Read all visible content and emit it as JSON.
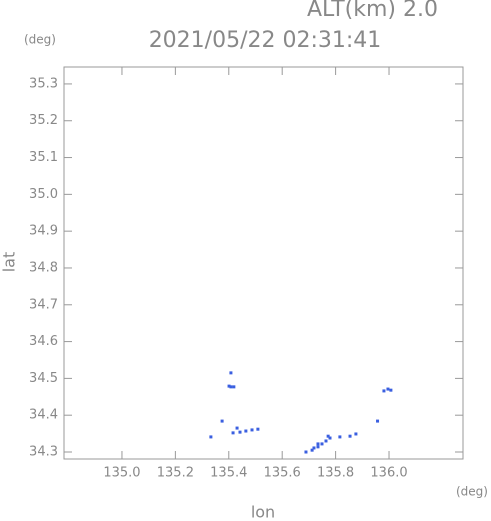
{
  "chart_data": {
    "type": "scatter",
    "title": "2021/05/22 02:31:41",
    "subtitle": "ALT(km) 2.0",
    "x_unit": "(deg)",
    "y_unit": "(deg)",
    "x_label": "lon",
    "y_label": "lat",
    "xlim": [
      134.783,
      136.277
    ],
    "ylim": [
      34.281,
      35.346
    ],
    "xticks": [
      {
        "value": 135,
        "label": "135.0"
      },
      135.2,
      135.4,
      135.6,
      135.8,
      {
        "value": 136,
        "label": "136.0"
      }
    ],
    "yticks": [
      34.3,
      34.4,
      34.5,
      34.6,
      34.7,
      34.8,
      34.9,
      {
        "value": 35,
        "label": "35.0"
      },
      35.1,
      35.2,
      35.3
    ],
    "series": [
      {
        "color": "#3a5fe0",
        "x": [
          135.408,
          135.401,
          135.408,
          135.419,
          135.333,
          135.416,
          135.442,
          135.464,
          135.487,
          135.509,
          135.431,
          135.375,
          135.689,
          135.712,
          135.734,
          135.749,
          135.764,
          135.779,
          135.772,
          135.816,
          135.854,
          135.876,
          135.734,
          135.719,
          135.957,
          135.996,
          136.007,
          135.981
        ],
        "y": [
          34.515,
          34.479,
          34.477,
          34.477,
          34.341,
          34.352,
          34.354,
          34.357,
          34.36,
          34.362,
          34.365,
          34.384,
          34.3,
          34.305,
          34.314,
          34.322,
          34.33,
          34.338,
          34.343,
          34.341,
          34.343,
          34.349,
          34.322,
          34.311,
          34.384,
          34.471,
          34.468,
          34.466
        ]
      }
    ]
  }
}
